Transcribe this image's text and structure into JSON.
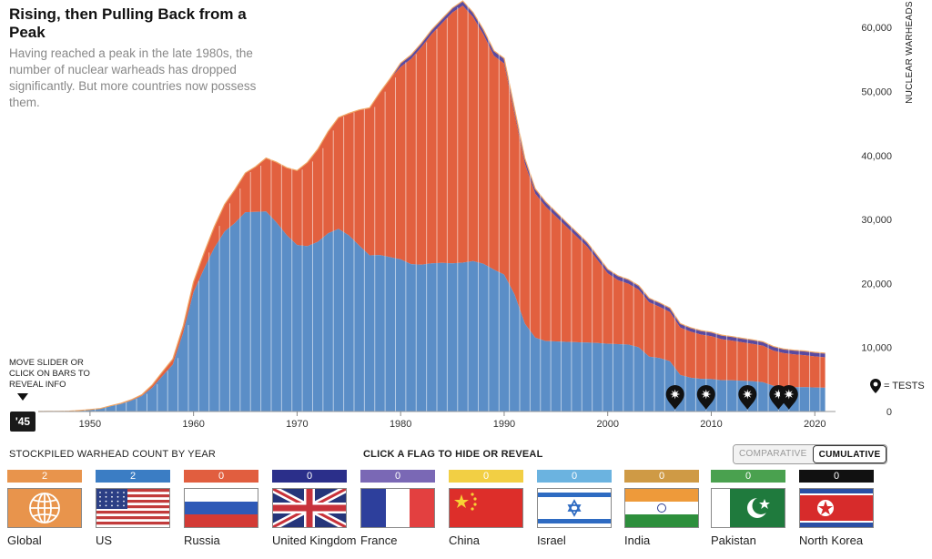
{
  "header": {
    "title": "Rising, then Pulling Back from a Peak",
    "subtitle": "Having reached a peak in the late 1980s, the number of nuclear warheads has dropped significantly. But more countries now possess them."
  },
  "hint": {
    "text": "MOVE SLIDER OR CLICK ON BARS TO REVEAL INFO",
    "slider_label": "'45"
  },
  "legend": {
    "tests_label": "= TESTS"
  },
  "controls": {
    "left_label": "STOCKPILED WARHEAD COUNT BY YEAR",
    "center_label": "CLICK A FLAG TO HIDE OR REVEAL",
    "toggle": {
      "comparative": "COMPARATIVE",
      "cumulative": "CUMULATIVE",
      "selected": "cumulative"
    }
  },
  "flags": [
    {
      "id": "global",
      "label": "Global",
      "count": "2",
      "color": "#e8944c"
    },
    {
      "id": "us",
      "label": "US",
      "count": "2",
      "color": "#3b7dc4"
    },
    {
      "id": "russia",
      "label": "Russia",
      "count": "0",
      "color": "#e15e3f"
    },
    {
      "id": "uk",
      "label": "United Kingdom",
      "count": "0",
      "color": "#2b2f8a"
    },
    {
      "id": "france",
      "label": "France",
      "count": "0",
      "color": "#7a68b5"
    },
    {
      "id": "china",
      "label": "China",
      "count": "0",
      "color": "#f2cf44"
    },
    {
      "id": "israel",
      "label": "Israel",
      "count": "0",
      "color": "#6bb3e0"
    },
    {
      "id": "india",
      "label": "India",
      "count": "0",
      "color": "#cf9a45"
    },
    {
      "id": "pakistan",
      "label": "Pakistan",
      "count": "0",
      "color": "#4aa14f"
    },
    {
      "id": "north-korea",
      "label": "North Korea",
      "count": "0",
      "color": "#111111"
    }
  ],
  "chart_data": {
    "type": "area",
    "ylabel": "NUCLEAR WARHEADS",
    "xlim": [
      1945,
      2022
    ],
    "ylim": [
      0,
      65000
    ],
    "x_ticks": [
      1950,
      1960,
      1970,
      1980,
      1990,
      2000,
      2010,
      2020
    ],
    "x_tick_labels": [
      "1950",
      "1960",
      "1970",
      "1980",
      "1990",
      "2000",
      "2010",
      "2020"
    ],
    "y_ticks": [
      0,
      10000,
      20000,
      30000,
      40000,
      50000,
      60000
    ],
    "y_tick_labels": [
      "0",
      "10,000",
      "20,000",
      "30,000",
      "40,000",
      "50,000",
      "60,000"
    ],
    "grid": false,
    "years": [
      1945,
      1946,
      1947,
      1948,
      1949,
      1950,
      1951,
      1952,
      1953,
      1954,
      1955,
      1956,
      1957,
      1958,
      1959,
      1960,
      1961,
      1962,
      1963,
      1964,
      1965,
      1966,
      1967,
      1968,
      1969,
      1970,
      1971,
      1972,
      1973,
      1974,
      1975,
      1976,
      1977,
      1978,
      1979,
      1980,
      1981,
      1982,
      1983,
      1984,
      1985,
      1986,
      1987,
      1988,
      1989,
      1990,
      1991,
      1992,
      1993,
      1994,
      1995,
      1996,
      1997,
      1998,
      1999,
      2000,
      2001,
      2002,
      2003,
      2004,
      2005,
      2006,
      2007,
      2008,
      2009,
      2010,
      2011,
      2012,
      2013,
      2014,
      2015,
      2016,
      2017,
      2018,
      2019,
      2020,
      2021
    ],
    "series": [
      {
        "name": "US",
        "color": "#5b8ec7",
        "values": [
          2,
          9,
          13,
          50,
          170,
          299,
          438,
          841,
          1169,
          1703,
          2422,
          3692,
          5543,
          7345,
          12298,
          18638,
          22229,
          25540,
          28133,
          29463,
          31139,
          31175,
          31255,
          29561,
          27552,
          26008,
          25830,
          26516,
          27835,
          28537,
          27519,
          25914,
          24393,
          24443,
          24107,
          23764,
          23031,
          22937,
          23154,
          23228,
          23135,
          23254,
          23490,
          23077,
          22174,
          21392,
          18306,
          13731,
          11536,
          11012,
          10953,
          10886,
          10829,
          10763,
          10698,
          10577,
          10526,
          10457,
          10027,
          8570,
          8360,
          7853,
          5709,
          5273,
          5113,
          5066,
          4897,
          4881,
          4804,
          4717,
          4571,
          4018,
          3822,
          3785,
          3805,
          3750,
          3708
        ]
      },
      {
        "name": "Russia",
        "color": "#e2603f",
        "values": [
          0,
          0,
          0,
          0,
          1,
          5,
          25,
          50,
          120,
          150,
          200,
          426,
          660,
          869,
          1060,
          1605,
          2471,
          3322,
          4238,
          5221,
          6129,
          7089,
          8339,
          9399,
          10538,
          11643,
          13092,
          14478,
          15915,
          17385,
          19055,
          21205,
          23044,
          25393,
          27935,
          30062,
          32049,
          33952,
          35804,
          37431,
          39197,
          40159,
          38107,
          35805,
          33417,
          32980,
          28200,
          25000,
          22500,
          21000,
          19500,
          18000,
          16500,
          15000,
          13000,
          11000,
          10000,
          9500,
          9000,
          8500,
          8000,
          7700,
          7400,
          7200,
          6900,
          6700,
          6400,
          6200,
          6000,
          5850,
          5700,
          5500,
          5300,
          5150,
          5000,
          4850,
          4750
        ]
      },
      {
        "name": "Other",
        "color": "#5a4aa0",
        "values": [
          0,
          0,
          0,
          0,
          0,
          0,
          0,
          0,
          0,
          0,
          0,
          0,
          0,
          0,
          0,
          0,
          0,
          0,
          0,
          0,
          0,
          0,
          0,
          0,
          0,
          0,
          0,
          0,
          0,
          0,
          0,
          0,
          0,
          0,
          0,
          600,
          620,
          640,
          660,
          680,
          700,
          720,
          740,
          760,
          780,
          800,
          800,
          780,
          760,
          740,
          720,
          700,
          690,
          680,
          670,
          660,
          660,
          650,
          650,
          640,
          640,
          640,
          630,
          630,
          630,
          630,
          630,
          630,
          630,
          630,
          630,
          640,
          640,
          640,
          650,
          650,
          660
        ]
      }
    ],
    "tests": [
      2006,
      2009,
      2013,
      2016,
      2017
    ]
  }
}
